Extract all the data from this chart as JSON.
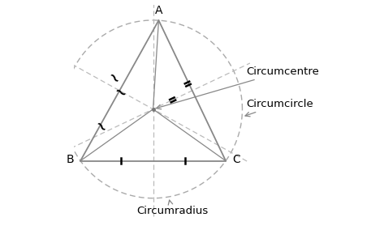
{
  "A": [
    0.38,
    0.93
  ],
  "B": [
    0.03,
    0.3
  ],
  "C": [
    0.68,
    0.3
  ],
  "bg_color": "#ffffff",
  "line_color": "#888888",
  "dashed_color": "#aaaaaa",
  "text_color": "#1a1a2e",
  "label_fontsize": 9.5,
  "vertex_fontsize": 10,
  "circumcentre_label": "Circumcentre",
  "circumcircle_label": "Circumcircle",
  "circumradius_label": "Circumradius"
}
